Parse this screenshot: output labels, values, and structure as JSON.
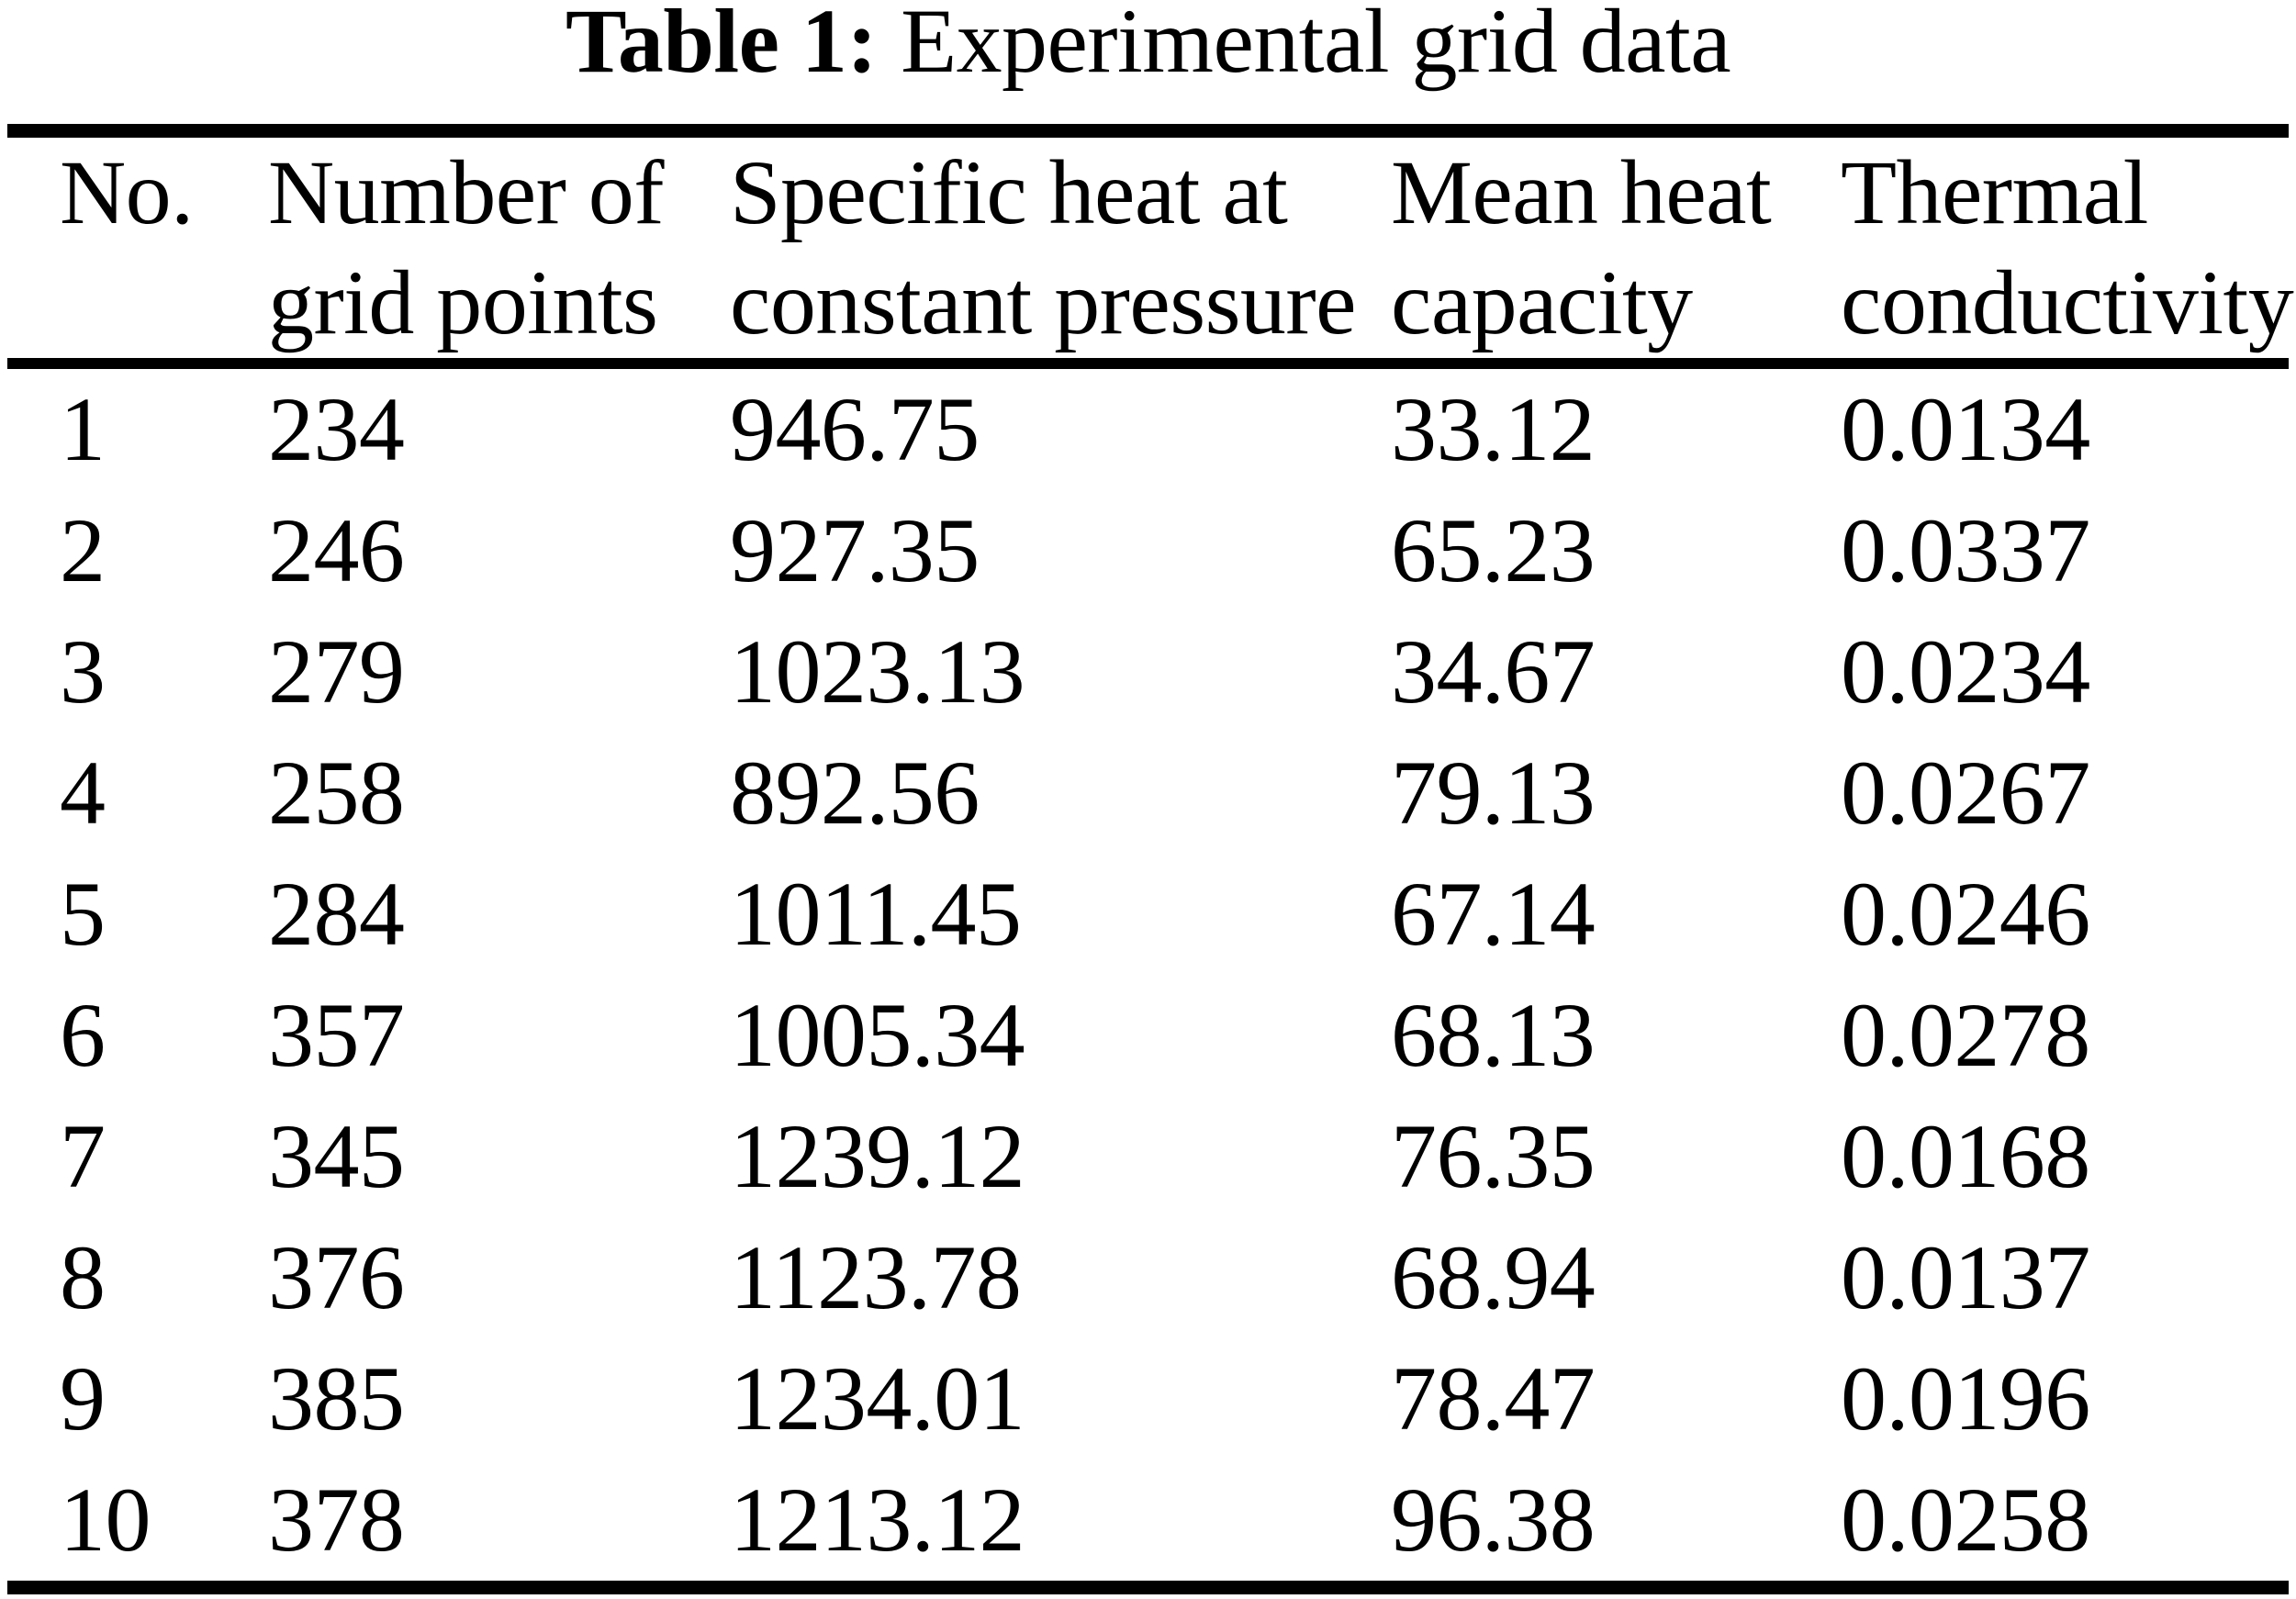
{
  "caption": {
    "label": "Table 1:",
    "text": "Experimental grid data"
  },
  "chart_data": {
    "type": "table",
    "title": "Table 1: Experimental grid data",
    "columns": [
      "No.",
      "Number of grid points",
      "Specific heat at constant pressure",
      "Mean heat capacity",
      "Thermal conductivity"
    ],
    "rows": [
      [
        "1",
        "234",
        "946.75",
        "33.12",
        "0.0134"
      ],
      [
        "2",
        "246",
        "927.35",
        "65.23",
        "0.0337"
      ],
      [
        "3",
        "279",
        "1023.13",
        "34.67",
        "0.0234"
      ],
      [
        "4",
        "258",
        "892.56",
        "79.13",
        "0.0267"
      ],
      [
        "5",
        "284",
        "1011.45",
        "67.14",
        "0.0246"
      ],
      [
        "6",
        "357",
        "1005.34",
        "68.13",
        "0.0278"
      ],
      [
        "7",
        "345",
        "1239.12",
        "76.35",
        "0.0168"
      ],
      [
        "8",
        "376",
        "1123.78",
        "68.94",
        "0.0137"
      ],
      [
        "9",
        "385",
        "1234.01",
        "78.47",
        "0.0196"
      ],
      [
        "10",
        "378",
        "1213.12",
        "96.38",
        "0.0258"
      ]
    ]
  }
}
